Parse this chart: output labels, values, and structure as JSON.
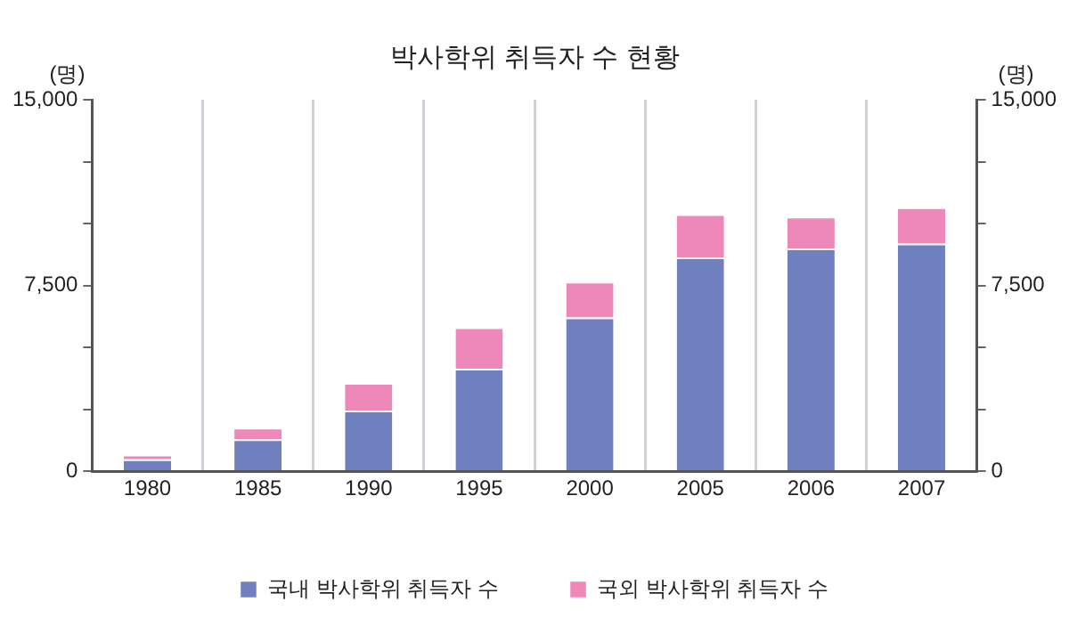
{
  "chart_data": {
    "type": "bar",
    "title": "박사학위 취득자 수 현황",
    "ylabel": "(명)",
    "y2label": "(명)",
    "categories": [
      "1980",
      "1985",
      "1990",
      "1995",
      "2000",
      "2005",
      "2006",
      "2007"
    ],
    "stacked": true,
    "series": [
      {
        "name": "국내 박사학위 취득자 수",
        "color": "#7080bf",
        "values": [
          480,
          1290,
          2450,
          4140,
          6210,
          8640,
          9000,
          9190
        ]
      },
      {
        "name": "국외 박사학위 취득자 수",
        "color": "#ee88b8",
        "values": [
          190,
          470,
          1120,
          1670,
          1450,
          1740,
          1280,
          1470
        ]
      }
    ],
    "ylim": [
      0,
      15000
    ],
    "yticks": [
      0,
      {
        "value": 2500,
        "label": null
      },
      {
        "value": 5000,
        "label": null
      },
      {
        "value": 7500,
        "label": "7,500"
      },
      {
        "value": 10000,
        "label": null
      },
      {
        "value": 12500,
        "label": null
      },
      {
        "value": 15000,
        "label": "15,000"
      }
    ],
    "y2lim": [
      0,
      15000
    ],
    "y2ticks": [
      0,
      {
        "value": 2500,
        "label": null
      },
      {
        "value": 5000,
        "label": null
      },
      {
        "value": 7500,
        "label": "7,500"
      },
      {
        "value": 10000,
        "label": null
      },
      {
        "value": 12500,
        "label": null
      },
      {
        "value": 15000,
        "label": "15,000"
      }
    ],
    "grid": "x",
    "legend": "bottom"
  }
}
